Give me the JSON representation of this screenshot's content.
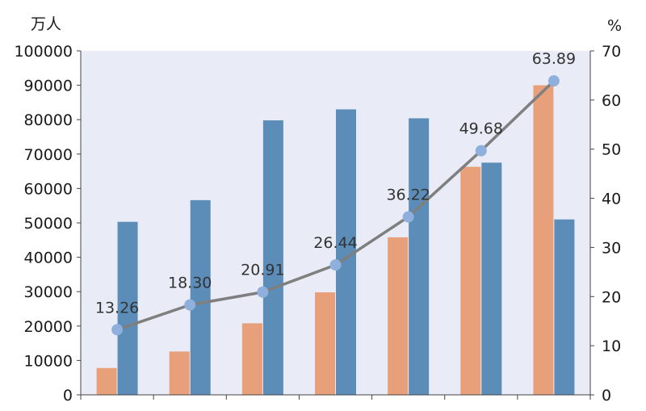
{
  "chart_data": {
    "type": "bar",
    "left_axis_unit": "万人",
    "right_axis_unit": "%",
    "left_axis": {
      "ylim": [
        0,
        100000
      ],
      "ticks": [
        "0",
        "10000",
        "20000",
        "30000",
        "40000",
        "50000",
        "60000",
        "70000",
        "80000",
        "90000",
        "100000"
      ]
    },
    "right_axis": {
      "ylim": [
        0,
        70
      ],
      "ticks": [
        "0",
        "10",
        "20",
        "30",
        "40",
        "50",
        "60",
        "70"
      ]
    },
    "categories": [
      "",
      "",
      "",
      "",
      "",
      "",
      ""
    ],
    "series": [
      {
        "values": [
          7800,
          12600,
          20800,
          29800,
          45800,
          66300,
          90000
        ],
        "color": "#E8A07A",
        "axis": "left"
      },
      {
        "values": [
          50300,
          56600,
          79800,
          83000,
          80400,
          67500,
          51000
        ],
        "color": "#5B8DB8",
        "axis": "left"
      },
      {
        "type": "line",
        "values": [
          13.26,
          18.3,
          20.91,
          26.44,
          36.22,
          49.68,
          63.89
        ],
        "labels": [
          "13.26",
          "18.30",
          "20.91",
          "26.44",
          "36.22",
          "49.68",
          "63.89"
        ],
        "color": "#7F7F7F",
        "marker_color": "#8FB0DC",
        "axis": "right"
      }
    ],
    "plot_background": "#E9ECF6",
    "grid": false
  }
}
